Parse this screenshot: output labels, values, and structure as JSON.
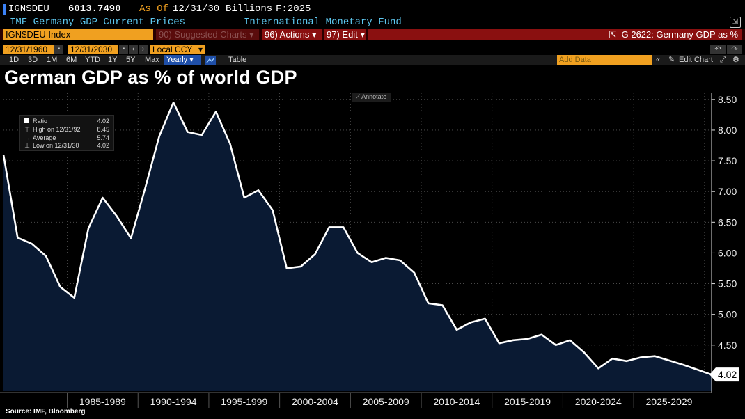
{
  "header": {
    "ticker": "IGN$DEU",
    "price": "6013.7490",
    "as_of_label": "As Of",
    "as_of_date": "12/31/30",
    "units": "Billions",
    "forecast": "F:2025",
    "description": "IMF Germany GDP Current Prices",
    "source_name": "International Monetary Fund"
  },
  "command_bar": {
    "security": "IGN$DEU Index",
    "suggested_charts": "90) Suggested Charts",
    "actions": "96) Actions",
    "edit": "97) Edit",
    "chart_code": "G 2622: Germany GDP as %"
  },
  "date_range": {
    "start": "12/31/1960",
    "end": "12/31/2030",
    "currency": "Local CCY"
  },
  "periods": [
    "1D",
    "3D",
    "1M",
    "6M",
    "YTD",
    "1Y",
    "5Y",
    "Max"
  ],
  "frequency": "Yearly",
  "table_label": "Table",
  "add_data_placeholder": "Add Data",
  "edit_chart_label": "Edit Chart",
  "annotate_label": "Annotate",
  "legend": {
    "ratio_label": "Ratio",
    "ratio_value": "4.02",
    "high_label": "High on 12/31/92",
    "high_value": "8.45",
    "avg_label": "Average",
    "avg_value": "5.74",
    "low_label": "Low on 12/31/30",
    "low_value": "4.02"
  },
  "last_value_label": "4.02",
  "source": "Source: IMF, Bloomberg",
  "colors": {
    "accent_orange": "#f0a020",
    "command_red": "#8a1010",
    "line": "#ffffff",
    "area_fill": "#0a1a33",
    "blue_text": "#5ec8f0"
  },
  "chart_data": {
    "type": "area",
    "title": "German GDP as % of world GDP",
    "xlabel": "",
    "ylabel": "",
    "x_tick_labels": [
      "1985-1989",
      "1990-1994",
      "1995-1999",
      "2000-2004",
      "2005-2009",
      "2010-2014",
      "2015-2019",
      "2020-2024",
      "2025-2029"
    ],
    "y_ticks": [
      4.5,
      5.0,
      5.5,
      6.0,
      6.5,
      7.0,
      7.5,
      8.0,
      8.5
    ],
    "ylim": [
      3.75,
      8.6
    ],
    "xlim": [
      1980,
      2030
    ],
    "grid": true,
    "series": [
      {
        "name": "Ratio",
        "x": [
          1980,
          1981,
          1982,
          1983,
          1984,
          1985,
          1986,
          1987,
          1988,
          1989,
          1990,
          1991,
          1992,
          1993,
          1994,
          1995,
          1996,
          1997,
          1998,
          1999,
          2000,
          2001,
          2002,
          2003,
          2004,
          2005,
          2006,
          2007,
          2008,
          2009,
          2010,
          2011,
          2012,
          2013,
          2014,
          2015,
          2016,
          2017,
          2018,
          2019,
          2020,
          2021,
          2022,
          2023,
          2024,
          2025,
          2026,
          2027,
          2028,
          2029,
          2030
        ],
        "values": [
          7.6,
          6.25,
          6.15,
          5.95,
          5.45,
          5.27,
          6.4,
          6.9,
          6.6,
          6.24,
          7.05,
          7.9,
          8.45,
          7.97,
          7.92,
          8.3,
          7.78,
          6.9,
          7.02,
          6.7,
          5.75,
          5.78,
          5.98,
          6.42,
          6.42,
          6.0,
          5.85,
          5.92,
          5.88,
          5.68,
          5.18,
          5.15,
          4.75,
          4.87,
          4.93,
          4.53,
          4.58,
          4.6,
          4.67,
          4.5,
          4.58,
          4.38,
          4.12,
          4.28,
          4.24,
          4.3,
          4.32,
          4.25,
          4.18,
          4.1,
          4.02
        ]
      }
    ]
  }
}
